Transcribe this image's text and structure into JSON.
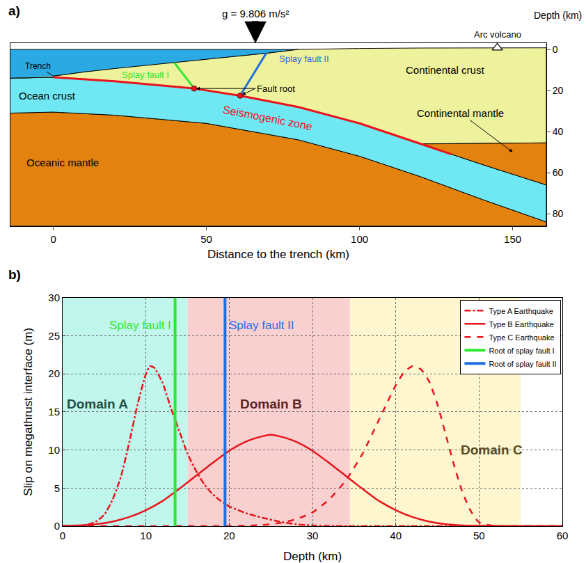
{
  "chart_data": [
    {
      "type": "cross_section",
      "panel": "a)",
      "xlabel": "Distance to the trench (km)",
      "xlim": [
        -14,
        161
      ],
      "xticks": [
        0,
        50,
        100,
        150
      ],
      "ylabel": "Depth (km)",
      "ylim": [
        86,
        -3
      ],
      "yticks": [
        0,
        20,
        40,
        60,
        80
      ],
      "sea_level": 0,
      "surface": {
        "x": [
          0,
          10,
          20,
          30,
          40,
          50,
          60,
          70,
          80,
          100,
          120,
          140,
          161
        ],
        "depth": [
          13,
          11,
          9.3,
          7.8,
          6.3,
          4.8,
          3.3,
          1.8,
          0,
          -0.5,
          -0.7,
          -0.8,
          -0.8
        ]
      },
      "slab_top": {
        "x": [
          -14,
          0,
          20,
          46,
          61,
          80,
          100,
          120,
          140,
          161
        ],
        "depth": [
          14,
          13.5,
          15.5,
          19,
          22.5,
          28,
          36,
          46,
          56,
          66
        ]
      },
      "slab_bottom": {
        "x": [
          -14,
          0,
          20,
          50,
          80,
          100,
          120,
          140,
          161
        ],
        "depth": [
          31,
          30.5,
          32,
          36,
          44,
          52,
          62,
          73,
          84
        ]
      },
      "moho": {
        "x": [
          120,
          161
        ],
        "depth": [
          46,
          45.5
        ]
      },
      "seismogenic_zone": {
        "label": "Seismogenic zone",
        "x": [
          0,
          130
        ],
        "label_at": [
          70,
          33.5
        ]
      },
      "splay_faults": [
        {
          "label": "Splay fault I",
          "color": "#2ee82e",
          "x": [
            46,
            39.5
          ],
          "depth": [
            19,
            6.4
          ],
          "label_at": [
            30,
            12.5
          ]
        },
        {
          "label": "Splay fault II",
          "color": "#1f6fe0",
          "x": [
            61,
            69.5
          ],
          "depth": [
            22.5,
            1.9
          ],
          "label_at": [
            82,
            4.5
          ]
        }
      ],
      "fault_root_label": {
        "text": "Fault root",
        "at": [
          66,
          19
        ]
      },
      "trench": {
        "text": "Trench",
        "at": [
          -5,
          8
        ]
      },
      "arc_volcano": {
        "text": "Arc volcano",
        "x": 145,
        "depth": -0.8
      },
      "gravity": {
        "text": "g = 9.806 m/s²",
        "x": 66
      },
      "labels": [
        {
          "text": "Ocean crust",
          "at": [
            -2,
            22.5
          ]
        },
        {
          "text": "Oceanic mantle",
          "at": [
            3,
            55
          ]
        },
        {
          "text": "Continental crust",
          "at": [
            128,
            10
          ]
        },
        {
          "text": "Continental mantle",
          "at": [
            133,
            31
          ],
          "arrow_to": [
            150,
            50
          ]
        }
      ]
    },
    {
      "type": "line",
      "panel": "b)",
      "xlabel": "Depth (km)",
      "ylabel": "Slip on megathrust interface (m)",
      "xlim": [
        0,
        60
      ],
      "xticks": [
        0,
        10,
        20,
        30,
        40,
        50,
        60
      ],
      "ylim": [
        0,
        30
      ],
      "yticks": [
        0,
        5,
        10,
        15,
        20,
        25,
        30
      ],
      "grid": true,
      "legend": "upper right",
      "series": [
        {
          "name": "Type A Earthquake",
          "color": "#e8141c",
          "line_style": "dashdot",
          "x": [
            0,
            2,
            3,
            4,
            5,
            6,
            7,
            8,
            9,
            10,
            10.5,
            11,
            12,
            13,
            14,
            15,
            16,
            17,
            18,
            19,
            20,
            22,
            24,
            26,
            28,
            30,
            32,
            35,
            40,
            50,
            60
          ],
          "values": [
            0,
            0.05,
            0.2,
            0.6,
            1.5,
            3.5,
            6.5,
            11,
            16,
            20,
            21,
            20.8,
            18.8,
            15.5,
            12.5,
            9.5,
            7.3,
            5.5,
            4.2,
            3.3,
            2.6,
            1.7,
            1.1,
            0.6,
            0.25,
            0.08,
            0.02,
            0,
            0,
            0,
            0
          ]
        },
        {
          "name": "Type B Earthquake",
          "color": "#e8141c",
          "line_style": "solid",
          "x": [
            0,
            2,
            4,
            6,
            8,
            10,
            12,
            14,
            16,
            18,
            20,
            22,
            24,
            25,
            26,
            28,
            30,
            32,
            34,
            36,
            38,
            40,
            42,
            44,
            46,
            48,
            50,
            55,
            60
          ],
          "values": [
            0.05,
            0.1,
            0.25,
            0.6,
            1.2,
            2.1,
            3.3,
            4.9,
            6.6,
            8.3,
            9.9,
            11.1,
            11.8,
            12,
            11.8,
            11.1,
            9.9,
            8.3,
            6.6,
            4.9,
            3.3,
            2.1,
            1.2,
            0.6,
            0.25,
            0.1,
            0.05,
            0,
            0
          ]
        },
        {
          "name": "Type C Earthquake",
          "color": "#e8141c",
          "line_style": "dash",
          "x": [
            0,
            10,
            20,
            22,
            24,
            26,
            28,
            30,
            32,
            34,
            36,
            38,
            40,
            41,
            42,
            43,
            44,
            45,
            46,
            47,
            48,
            49,
            50,
            52,
            55,
            60
          ],
          "values": [
            0,
            0,
            0,
            0.05,
            0.15,
            0.4,
            0.9,
            1.8,
            3.5,
            6,
            9.5,
            14,
            18.5,
            20.2,
            21,
            20.6,
            19,
            16,
            12,
            8,
            4.5,
            2,
            0.5,
            0,
            0,
            0
          ]
        }
      ],
      "roots": [
        {
          "name": "Root of splay fault I",
          "label": "Splay fault I",
          "color": "#2ee82e",
          "x": 13.5
        },
        {
          "name": "Root of splay fault II",
          "label": "Splay fault II",
          "color": "#1f6fe0",
          "x": 19.5
        }
      ],
      "domains": [
        {
          "label": "Domain A",
          "range": [
            0,
            15
          ],
          "color": "#b5f5e8",
          "label_at": [
            4.2,
            16
          ]
        },
        {
          "label": "Domain B",
          "range": [
            15,
            34.5
          ],
          "color": "#f8c8c8",
          "label_at": [
            25,
            16
          ]
        },
        {
          "label": "Domain C",
          "range": [
            34.5,
            55
          ],
          "color": "#fdf5c6",
          "label_at": [
            51.5,
            10
          ]
        }
      ]
    }
  ]
}
